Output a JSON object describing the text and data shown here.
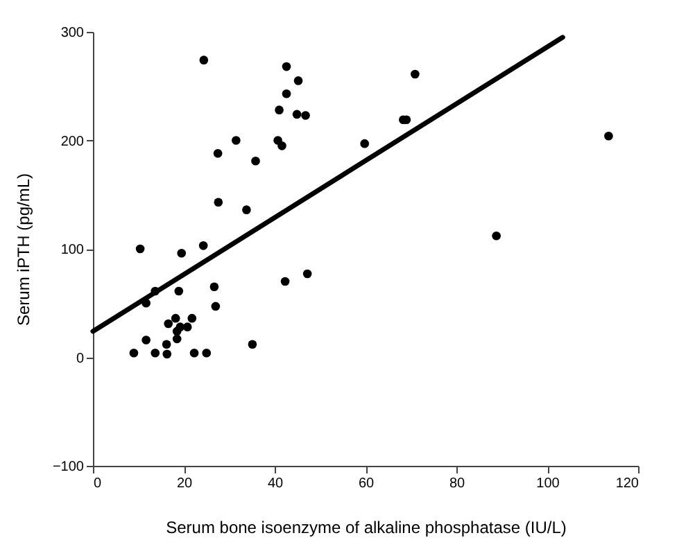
{
  "chart_data": {
    "type": "scatter",
    "xlabel": "Serum bone isoenzyme of alkaline phosphatase (IU/L)",
    "ylabel": "Serum iPTH (pg/mL)",
    "xlim": [
      0,
      120
    ],
    "ylim": [
      -100,
      300
    ],
    "xticks": [
      0,
      20,
      40,
      60,
      80,
      100,
      120
    ],
    "yticks": [
      -100,
      0,
      100,
      200,
      300
    ],
    "grid": false,
    "marker": "circle",
    "series": [
      {
        "color": "#000000",
        "x": [
          24.4,
          42.6,
          45.2,
          42.6,
          41,
          44.9,
          46.8,
          70.9,
          69,
          68.3,
          31.5,
          40.7,
          41.6,
          59.8,
          35.8,
          33.8,
          113.5,
          88.8,
          42.3,
          47.2,
          35.1,
          27.5,
          27.6,
          10.4,
          19.5,
          24.3,
          26.7,
          27,
          18.9,
          13.7,
          11.7,
          11.7,
          9,
          13.7,
          16.3,
          16.2,
          18.5,
          16.6,
          18.2,
          19.2,
          20.8,
          21.8,
          18.5,
          22.3,
          25
        ],
        "values": [
          274,
          268,
          255,
          243,
          228,
          224,
          223,
          261,
          219,
          219,
          200,
          200,
          195,
          197,
          181,
          136,
          204,
          112,
          70,
          77,
          12,
          188,
          143,
          100,
          96,
          103,
          65,
          47,
          61,
          61,
          50,
          16,
          4,
          4,
          3,
          12,
          17,
          31,
          36,
          28,
          28,
          36,
          24,
          4,
          4
        ]
      },
      {
        "type": "line",
        "color": "#000000",
        "line_style": "solid",
        "marker": "none",
        "x": [
          0,
          103.4
        ],
        "values": [
          24,
          295
        ]
      }
    ]
  }
}
